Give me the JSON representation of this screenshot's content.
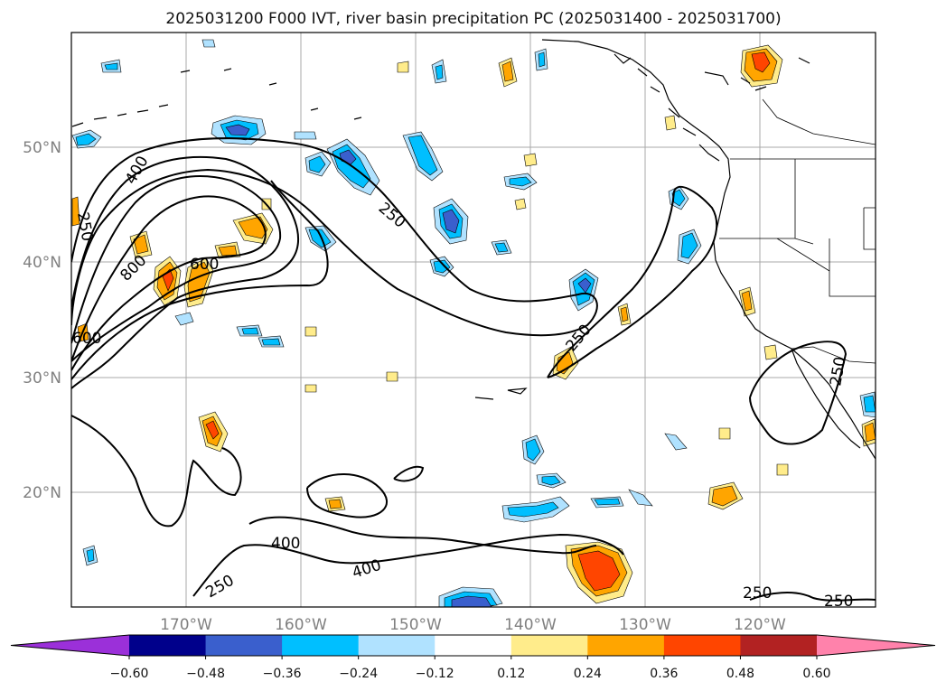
{
  "title": "2025031200 F000 IVT, river basin precipitation PC (2025031400 - 2025031700)",
  "map": {
    "lat_labels": [
      "50°N",
      "40°N",
      "30°N",
      "20°N"
    ],
    "lon_labels": [
      "170°W",
      "160°W",
      "150°W",
      "140°W",
      "130°W",
      "120°W"
    ],
    "lat_values": [
      50,
      40,
      30,
      20
    ],
    "lon_values": [
      -170,
      -160,
      -150,
      -140,
      -130,
      -120
    ],
    "extent": {
      "lon_min": -180,
      "lon_max": -110,
      "lat_min": 10,
      "lat_max": 60
    },
    "ivt_contour_levels": [
      250,
      400,
      600,
      800
    ],
    "contour_labels": [
      "400",
      "250",
      "800",
      "600",
      "250",
      "600",
      "250",
      "400",
      "400",
      "250",
      "250",
      "250",
      "250"
    ]
  },
  "colorbar": {
    "ticks": [
      "−0.60",
      "−0.48",
      "−0.36",
      "−0.24",
      "−0.12",
      "0.12",
      "0.24",
      "0.36",
      "0.48",
      "0.60"
    ],
    "colors": [
      "#9b30d9",
      "#00008b",
      "#3a5fcd",
      "#00bfff",
      "#b0e2ff",
      "#ffffff",
      "#ffec8b",
      "#ffa500",
      "#ff4500",
      "#b22222",
      "#ff82ab"
    ]
  },
  "colors": {
    "neg_weak": "#b0e2ff",
    "neg_mid": "#00bfff",
    "neg_strong": "#3a5fcd",
    "pos_weak": "#ffec8b",
    "pos_mid": "#ffa500",
    "pos_strong": "#ff4500"
  }
}
